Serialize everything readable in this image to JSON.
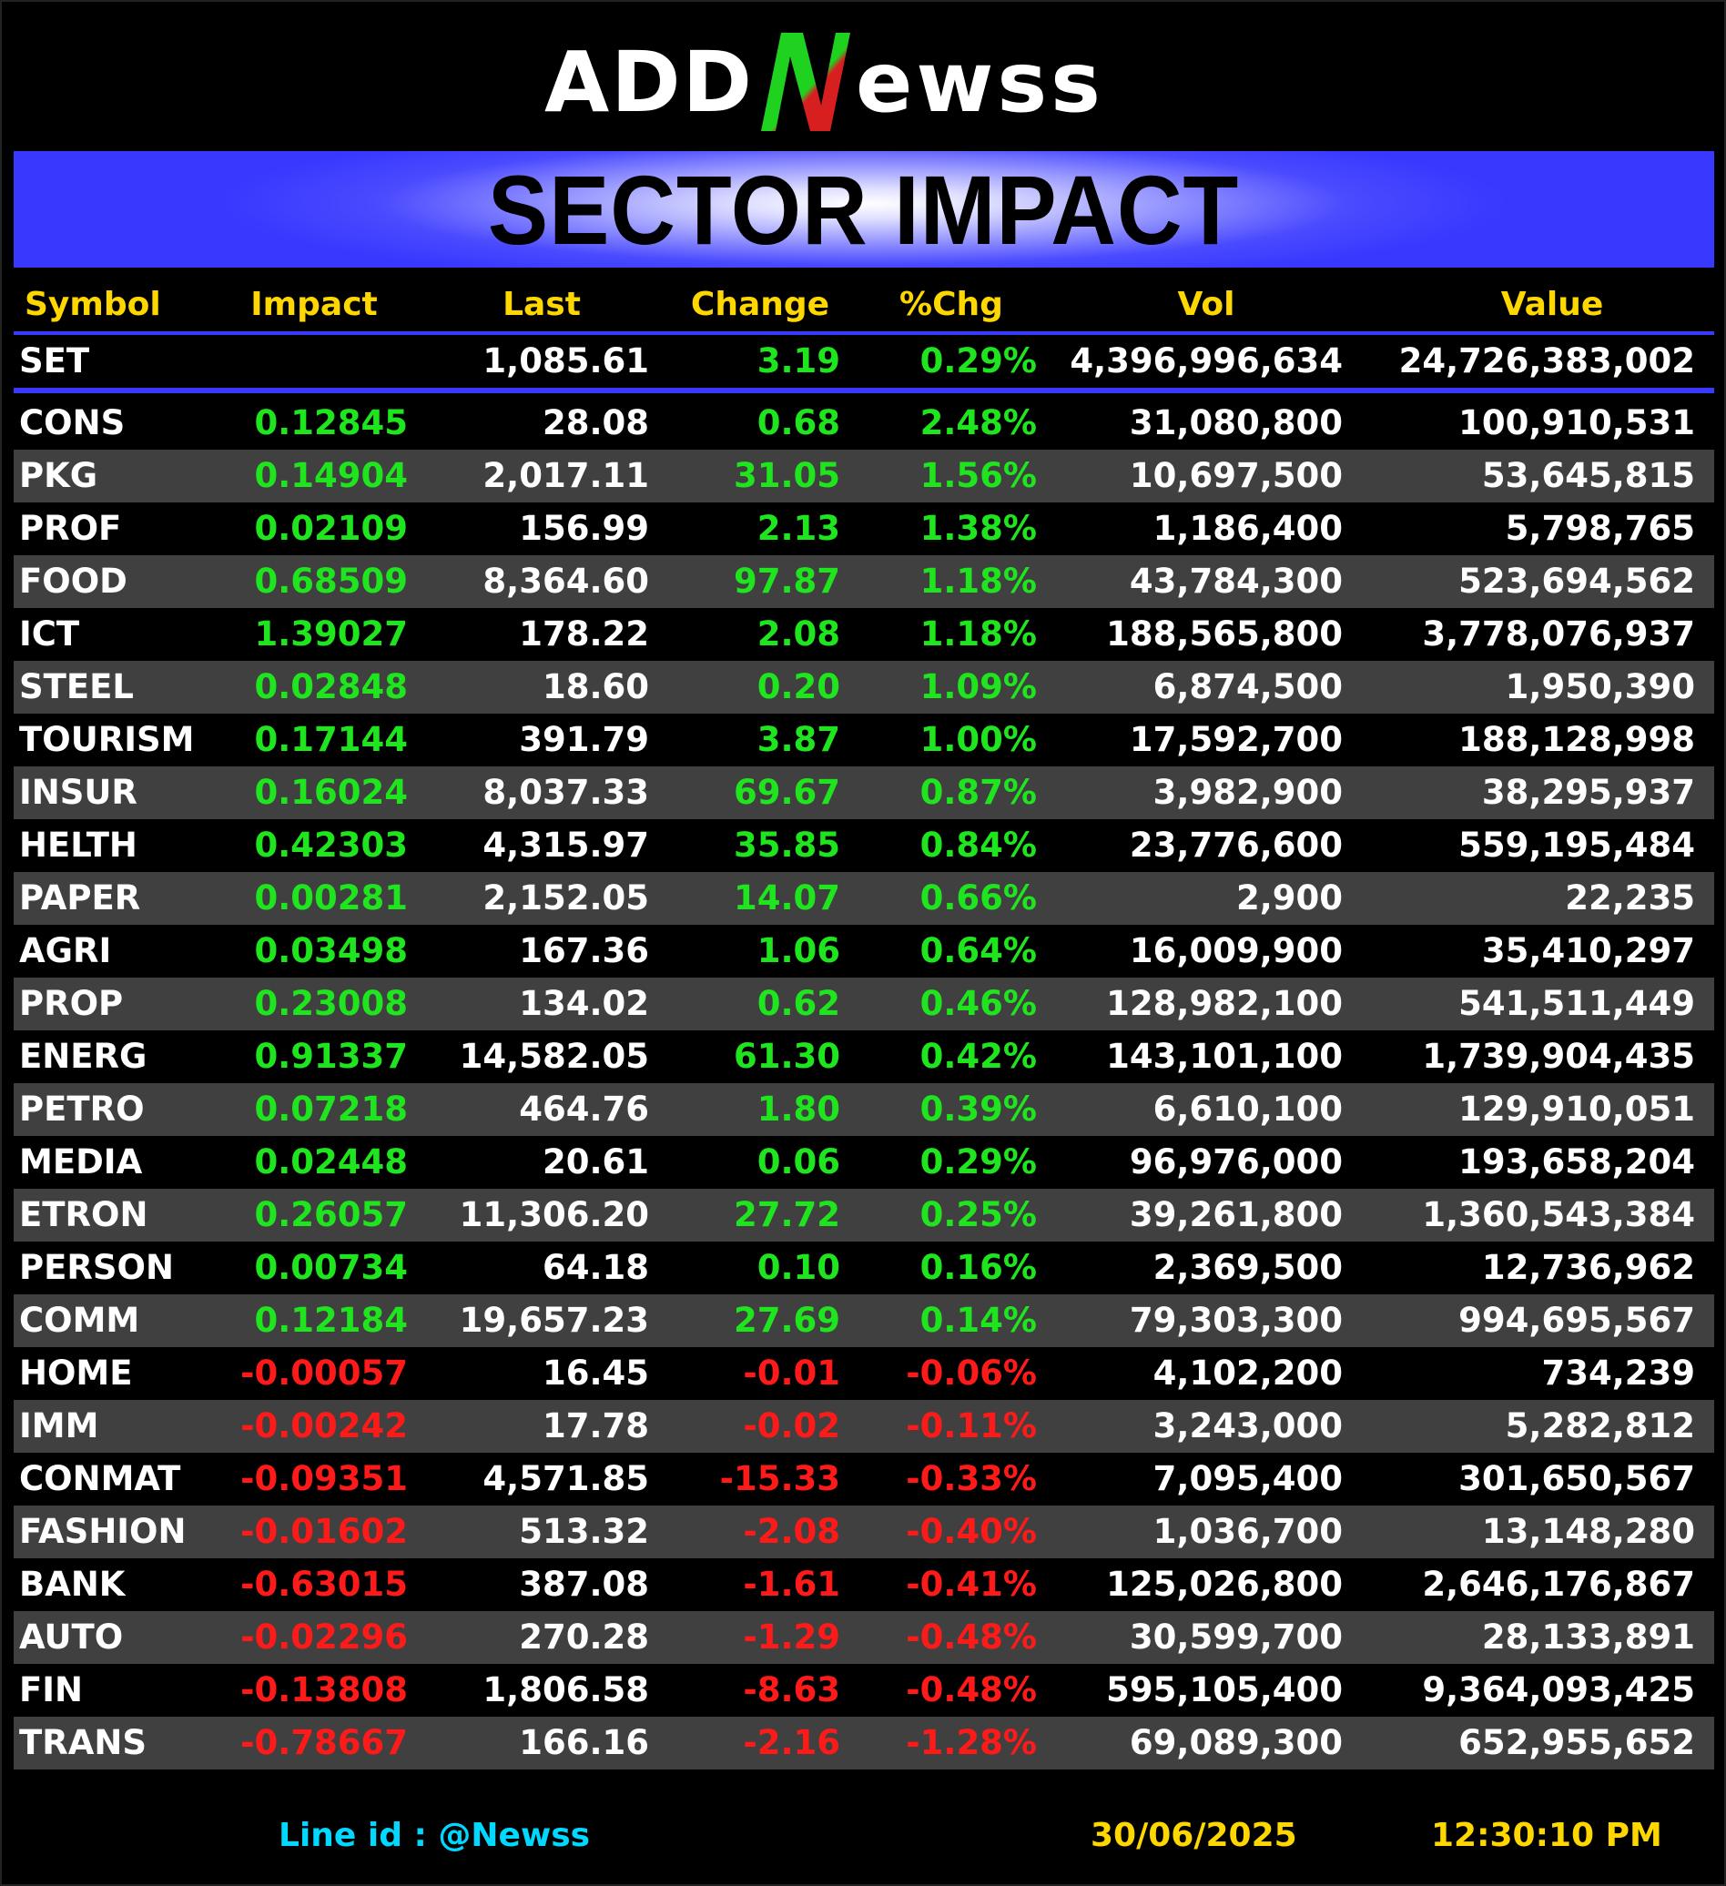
{
  "logo": {
    "text_left": "ADD",
    "text_right": "ewss",
    "mark": "N",
    "colors": {
      "text": "#ffffff",
      "mark_green": "#1fd21f",
      "mark_red": "#d81f1f"
    }
  },
  "banner": {
    "title": "SECTOR IMPACT",
    "color": "#3838ff"
  },
  "table": {
    "headers": {
      "symbol": "Symbol",
      "impact": "Impact",
      "last": "Last",
      "change": "Change",
      "pct": "%Chg",
      "vol": "Vol",
      "value": "Value"
    },
    "index_row": {
      "symbol": "SET",
      "impact": "",
      "last": "1,085.61",
      "change": "3.19",
      "pct": "0.29%",
      "vol": "4,396,996,634",
      "value": "24,726,383,002",
      "direction": "pos"
    },
    "rows": [
      {
        "symbol": "CONS",
        "impact": "0.12845",
        "last": "28.08",
        "change": "0.68",
        "pct": "2.48%",
        "vol": "31,080,800",
        "value": "100,910,531",
        "direction": "pos"
      },
      {
        "symbol": "PKG",
        "impact": "0.14904",
        "last": "2,017.11",
        "change": "31.05",
        "pct": "1.56%",
        "vol": "10,697,500",
        "value": "53,645,815",
        "direction": "pos"
      },
      {
        "symbol": "PROF",
        "impact": "0.02109",
        "last": "156.99",
        "change": "2.13",
        "pct": "1.38%",
        "vol": "1,186,400",
        "value": "5,798,765",
        "direction": "pos"
      },
      {
        "symbol": "FOOD",
        "impact": "0.68509",
        "last": "8,364.60",
        "change": "97.87",
        "pct": "1.18%",
        "vol": "43,784,300",
        "value": "523,694,562",
        "direction": "pos"
      },
      {
        "symbol": "ICT",
        "impact": "1.39027",
        "last": "178.22",
        "change": "2.08",
        "pct": "1.18%",
        "vol": "188,565,800",
        "value": "3,778,076,937",
        "direction": "pos"
      },
      {
        "symbol": "STEEL",
        "impact": "0.02848",
        "last": "18.60",
        "change": "0.20",
        "pct": "1.09%",
        "vol": "6,874,500",
        "value": "1,950,390",
        "direction": "pos"
      },
      {
        "symbol": "TOURISM",
        "impact": "0.17144",
        "last": "391.79",
        "change": "3.87",
        "pct": "1.00%",
        "vol": "17,592,700",
        "value": "188,128,998",
        "direction": "pos"
      },
      {
        "symbol": "INSUR",
        "impact": "0.16024",
        "last": "8,037.33",
        "change": "69.67",
        "pct": "0.87%",
        "vol": "3,982,900",
        "value": "38,295,937",
        "direction": "pos"
      },
      {
        "symbol": "HELTH",
        "impact": "0.42303",
        "last": "4,315.97",
        "change": "35.85",
        "pct": "0.84%",
        "vol": "23,776,600",
        "value": "559,195,484",
        "direction": "pos"
      },
      {
        "symbol": "PAPER",
        "impact": "0.00281",
        "last": "2,152.05",
        "change": "14.07",
        "pct": "0.66%",
        "vol": "2,900",
        "value": "22,235",
        "direction": "pos"
      },
      {
        "symbol": "AGRI",
        "impact": "0.03498",
        "last": "167.36",
        "change": "1.06",
        "pct": "0.64%",
        "vol": "16,009,900",
        "value": "35,410,297",
        "direction": "pos"
      },
      {
        "symbol": "PROP",
        "impact": "0.23008",
        "last": "134.02",
        "change": "0.62",
        "pct": "0.46%",
        "vol": "128,982,100",
        "value": "541,511,449",
        "direction": "pos"
      },
      {
        "symbol": "ENERG",
        "impact": "0.91337",
        "last": "14,582.05",
        "change": "61.30",
        "pct": "0.42%",
        "vol": "143,101,100",
        "value": "1,739,904,435",
        "direction": "pos"
      },
      {
        "symbol": "PETRO",
        "impact": "0.07218",
        "last": "464.76",
        "change": "1.80",
        "pct": "0.39%",
        "vol": "6,610,100",
        "value": "129,910,051",
        "direction": "pos"
      },
      {
        "symbol": "MEDIA",
        "impact": "0.02448",
        "last": "20.61",
        "change": "0.06",
        "pct": "0.29%",
        "vol": "96,976,000",
        "value": "193,658,204",
        "direction": "pos"
      },
      {
        "symbol": "ETRON",
        "impact": "0.26057",
        "last": "11,306.20",
        "change": "27.72",
        "pct": "0.25%",
        "vol": "39,261,800",
        "value": "1,360,543,384",
        "direction": "pos"
      },
      {
        "symbol": "PERSON",
        "impact": "0.00734",
        "last": "64.18",
        "change": "0.10",
        "pct": "0.16%",
        "vol": "2,369,500",
        "value": "12,736,962",
        "direction": "pos"
      },
      {
        "symbol": "COMM",
        "impact": "0.12184",
        "last": "19,657.23",
        "change": "27.69",
        "pct": "0.14%",
        "vol": "79,303,300",
        "value": "994,695,567",
        "direction": "pos"
      },
      {
        "symbol": "HOME",
        "impact": "-0.00057",
        "last": "16.45",
        "change": "-0.01",
        "pct": "-0.06%",
        "vol": "4,102,200",
        "value": "734,239",
        "direction": "neg"
      },
      {
        "symbol": "IMM",
        "impact": "-0.00242",
        "last": "17.78",
        "change": "-0.02",
        "pct": "-0.11%",
        "vol": "3,243,000",
        "value": "5,282,812",
        "direction": "neg"
      },
      {
        "symbol": "CONMAT",
        "impact": "-0.09351",
        "last": "4,571.85",
        "change": "-15.33",
        "pct": "-0.33%",
        "vol": "7,095,400",
        "value": "301,650,567",
        "direction": "neg"
      },
      {
        "symbol": "FASHION",
        "impact": "-0.01602",
        "last": "513.32",
        "change": "-2.08",
        "pct": "-0.40%",
        "vol": "1,036,700",
        "value": "13,148,280",
        "direction": "neg"
      },
      {
        "symbol": "BANK",
        "impact": "-0.63015",
        "last": "387.08",
        "change": "-1.61",
        "pct": "-0.41%",
        "vol": "125,026,800",
        "value": "2,646,176,867",
        "direction": "neg"
      },
      {
        "symbol": "AUTO",
        "impact": "-0.02296",
        "last": "270.28",
        "change": "-1.29",
        "pct": "-0.48%",
        "vol": "30,599,700",
        "value": "28,133,891",
        "direction": "neg"
      },
      {
        "symbol": "FIN",
        "impact": "-0.13808",
        "last": "1,806.58",
        "change": "-8.63",
        "pct": "-0.48%",
        "vol": "595,105,400",
        "value": "9,364,093,425",
        "direction": "neg"
      },
      {
        "symbol": "TRANS",
        "impact": "-0.78667",
        "last": "166.16",
        "change": "-2.16",
        "pct": "-1.28%",
        "vol": "69,089,300",
        "value": "652,955,652",
        "direction": "neg"
      }
    ]
  },
  "footer": {
    "line_id": "Line id  : @Newss",
    "date": "30/06/2025",
    "time": "12:30:10 PM"
  },
  "colors": {
    "positive": "#1fe51f",
    "negative": "#ff1a1a",
    "header_text": "#ffd700",
    "footer_line": "#00d8ff",
    "rule": "#3a3aff",
    "alt_row": "#404040"
  }
}
